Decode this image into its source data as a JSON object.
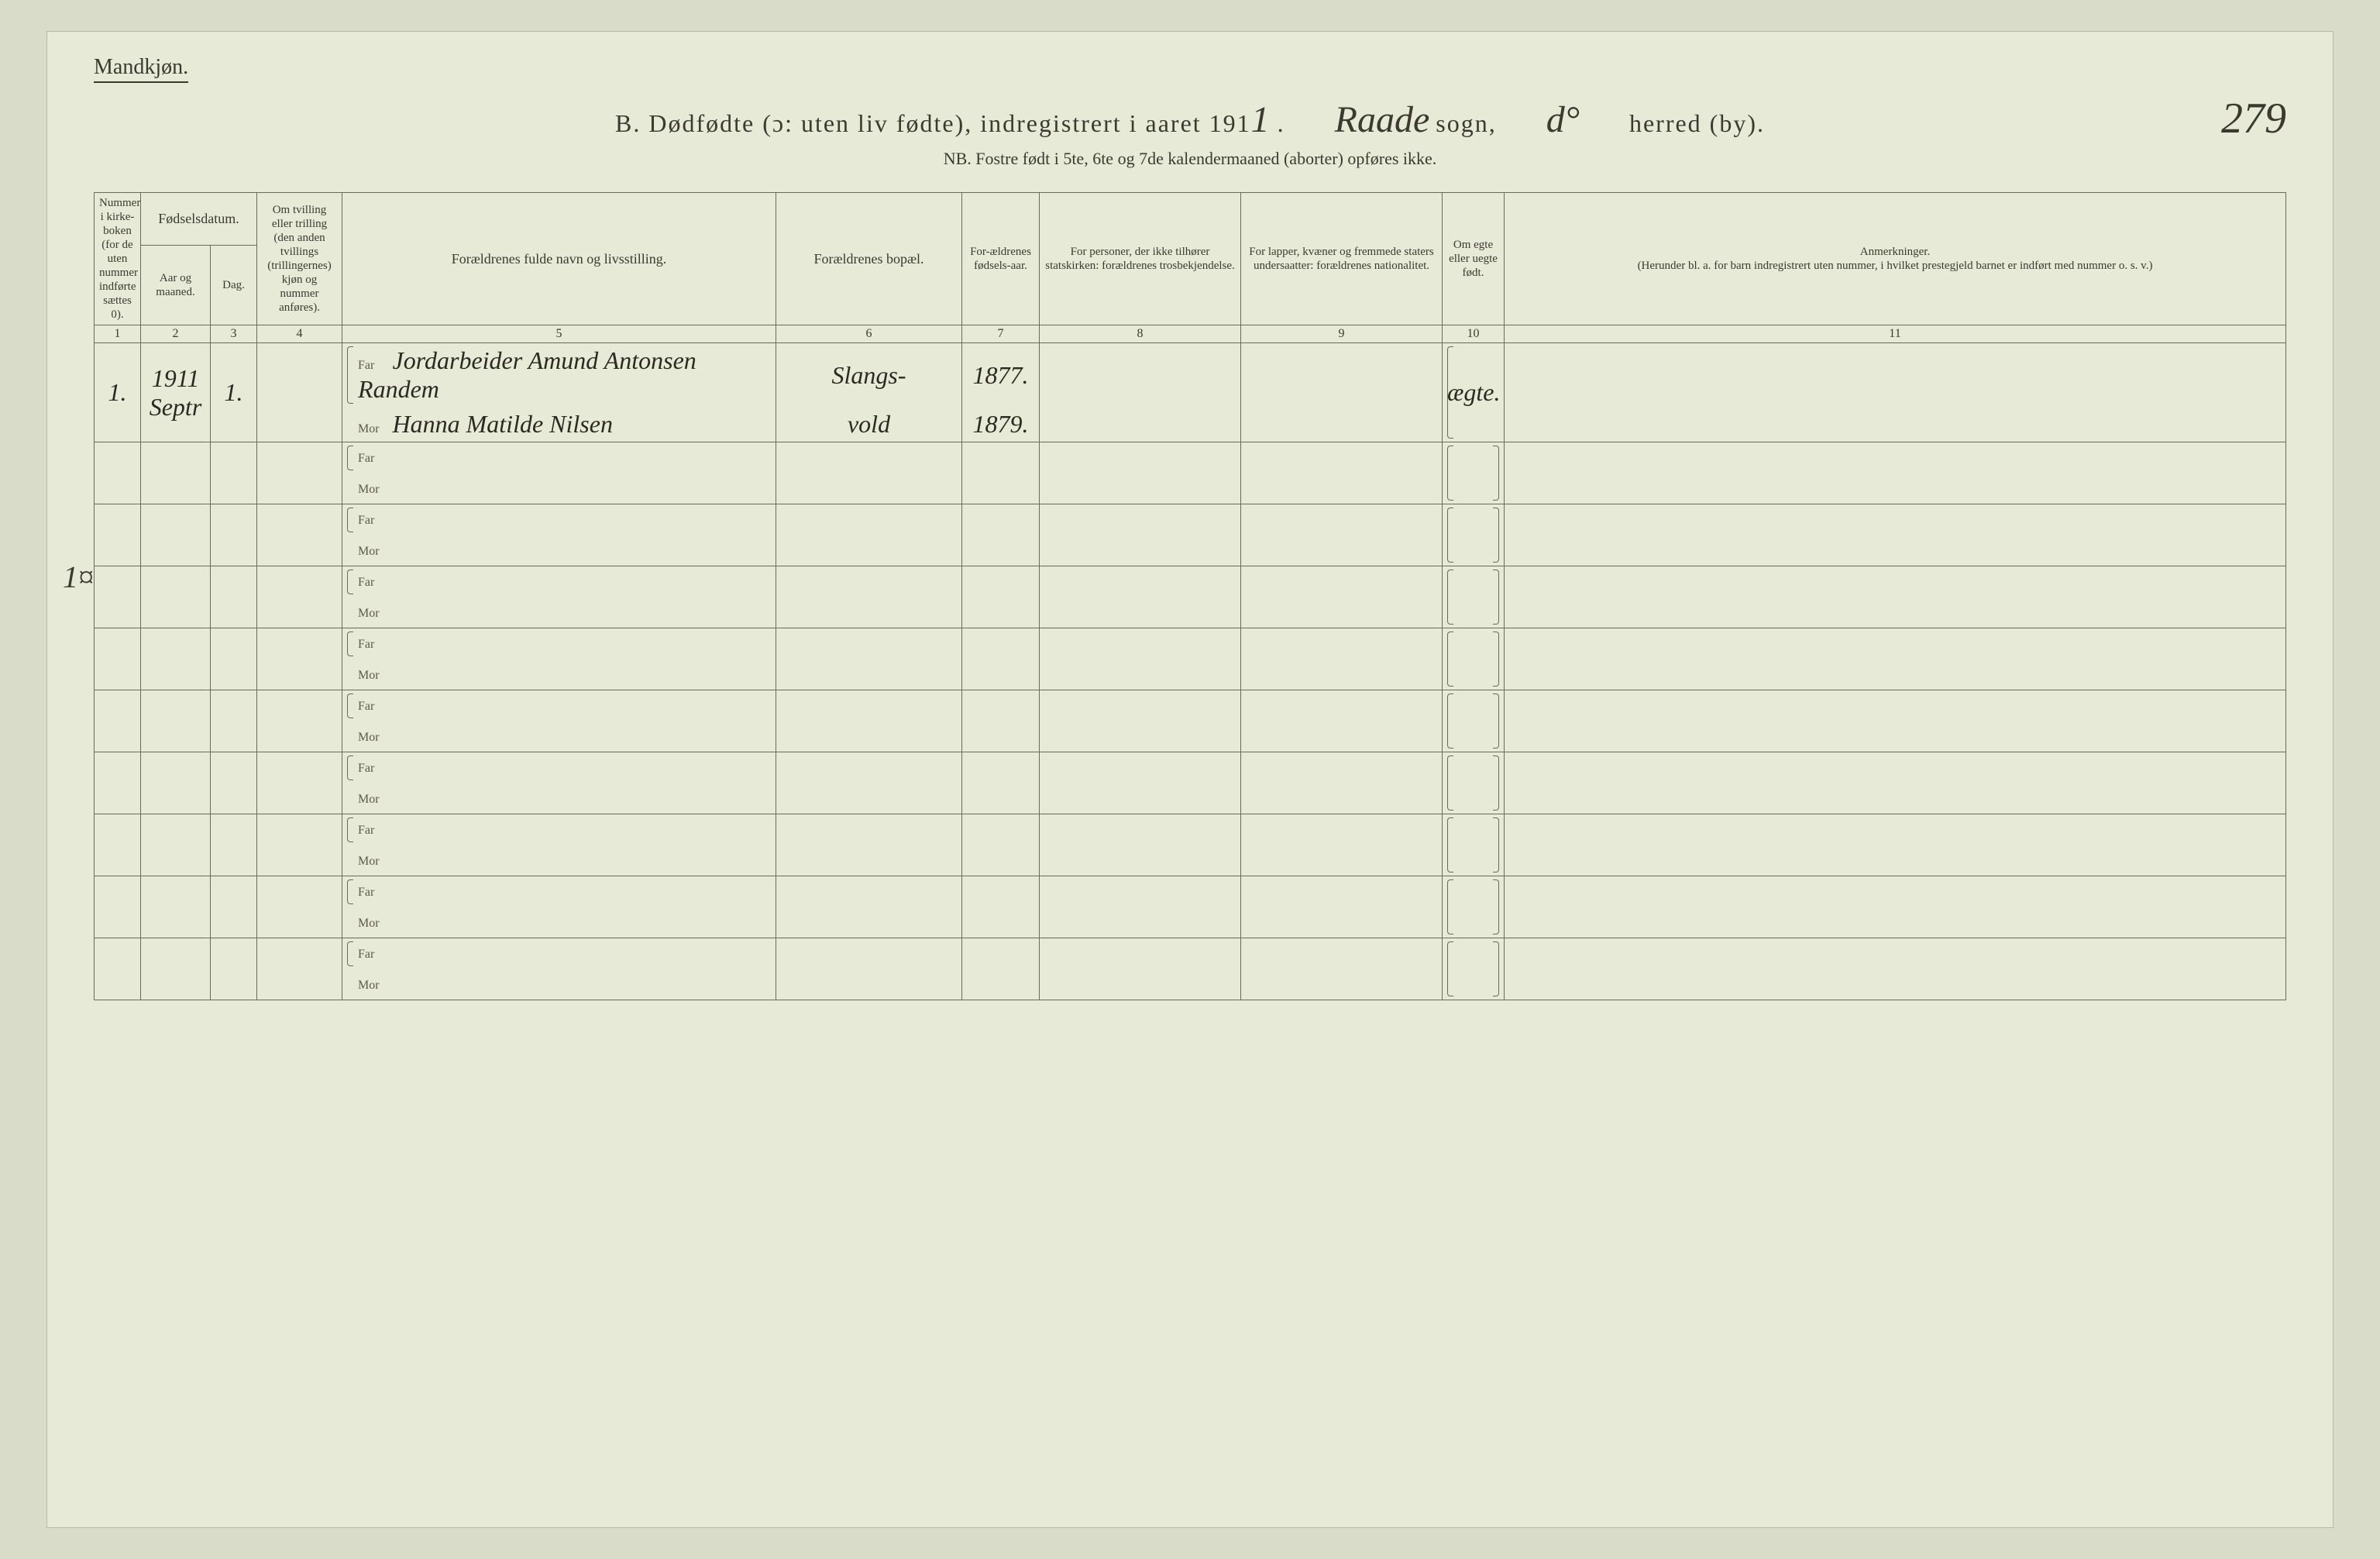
{
  "page": {
    "gender_label": "Mandkjøn.",
    "title_prefix": "B.  Dødfødte (ɔ: uten liv fødte), indregistrert i aaret 191",
    "year_handwritten": "1",
    "sogn_handwritten": "Raade",
    "sogn_label": "sogn,",
    "herred_handwritten": "d°",
    "herred_label": "herred (by).",
    "page_number": "279",
    "nb_line": "NB.  Fostre født i 5te, 6te og 7de kalendermaaned (aborter) opføres ikke.",
    "margin_mark": "1¤"
  },
  "columns": {
    "c1": "Nummer i kirke-boken (for de uten nummer indførte sættes 0).",
    "fodsel": "Fødselsdatum.",
    "c2": "Aar og maaned.",
    "c3": "Dag.",
    "c4": "Om tvilling eller trilling (den anden tvillings (trillingernes) kjøn og nummer anføres).",
    "c5": "Forældrenes fulde navn og livsstilling.",
    "c6": "Forældrenes bopæl.",
    "c7": "For-ældrenes fødsels-aar.",
    "c8": "For personer, der ikke tilhører statskirken: forældrenes trosbekjendelse.",
    "c9": "For lapper, kvæner og fremmede staters undersaatter: forældrenes nationalitet.",
    "c10": "Om egte eller uegte født.",
    "c11_title": "Anmerkninger.",
    "c11_sub": "(Herunder bl. a. for barn indregistrert uten nummer, i hvilket prestegjeld barnet er indført med nummer o. s. v.)"
  },
  "colnums": [
    "1",
    "2",
    "3",
    "4",
    "5",
    "6",
    "7",
    "8",
    "9",
    "10",
    "11"
  ],
  "parent_labels": {
    "far": "Far",
    "mor": "Mor"
  },
  "entries": [
    {
      "num": "1.",
      "year_month": "1911 Septr",
      "day": "1.",
      "twin": "",
      "far_name": "Jordarbeider Amund Antonsen Randem",
      "mor_name": "Hanna Matilde Nilsen",
      "residence_far": "Slangs-",
      "residence_mor": "vold",
      "far_birth": "1877.",
      "mor_birth": "1879.",
      "religion": "",
      "nationality": "",
      "legit": "ægte.",
      "remarks": ""
    }
  ],
  "blank_rows": 9,
  "colors": {
    "paper": "#e8ead8",
    "outer": "#d8dcc8",
    "line": "#6a6a55",
    "text": "#3a3a2f"
  }
}
